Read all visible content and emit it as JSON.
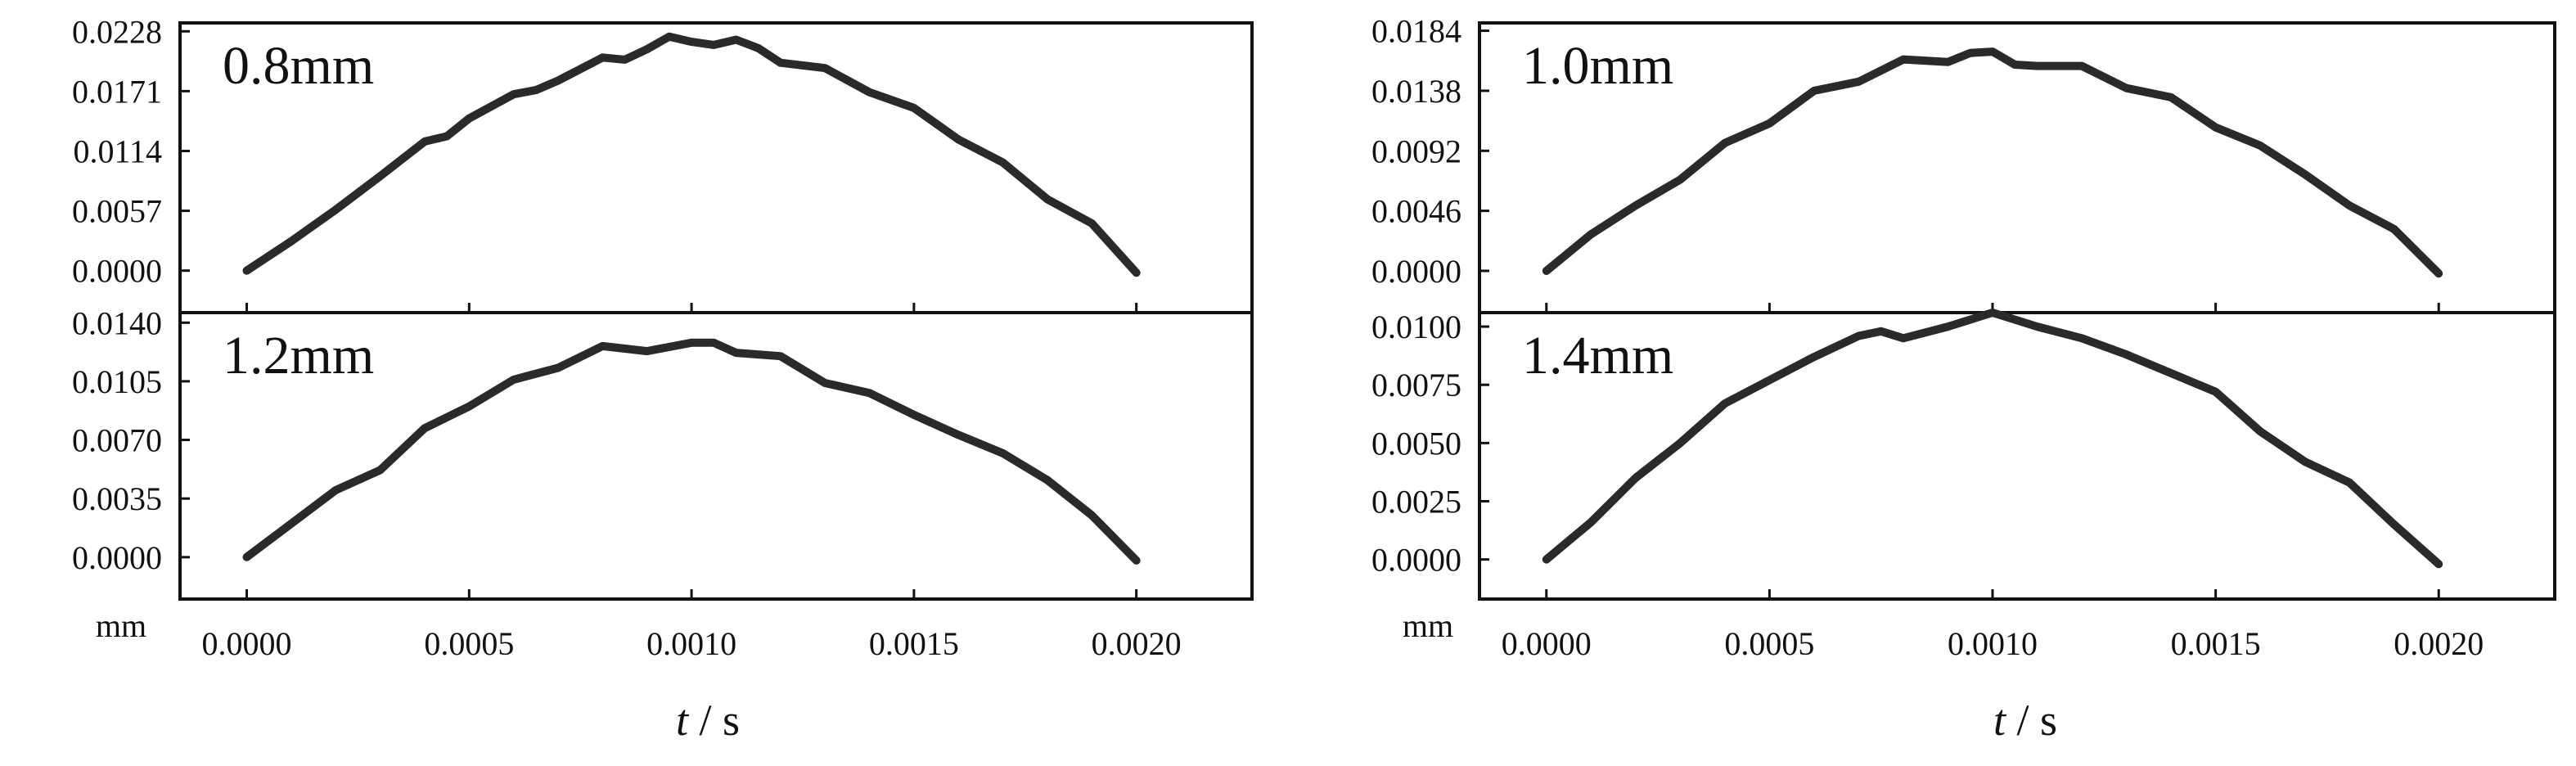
{
  "chart_data": [
    {
      "type": "line",
      "label": "0.8mm",
      "unit": "mm",
      "xlabel_italic": "t",
      "xlabel_rest": " / s",
      "xlim": [
        -0.00015,
        0.00226
      ],
      "ylim": [
        -0.004,
        0.0236
      ],
      "x_ticks": [
        "0.0000",
        "0.0005",
        "0.0010",
        "0.0015",
        "0.0020"
      ],
      "y_ticks": [
        "0.0000",
        "0.0057",
        "0.0114",
        "0.0171",
        "0.0228"
      ],
      "series": [
        {
          "x": [
            0,
            0.0001,
            0.0002,
            0.0003,
            0.0004,
            0.00045,
            0.0005,
            0.0006,
            0.00065,
            0.0007,
            0.0008,
            0.00085,
            0.0009,
            0.00095,
            0.001,
            0.00105,
            0.0011,
            0.00115,
            0.0012,
            0.0013,
            0.0014,
            0.0015,
            0.0016,
            0.0017,
            0.0018,
            0.0019,
            0.002
          ],
          "y": [
            0,
            0.0028,
            0.0058,
            0.009,
            0.0123,
            0.0128,
            0.0145,
            0.0168,
            0.0172,
            0.0181,
            0.0203,
            0.0201,
            0.0211,
            0.0223,
            0.0218,
            0.0215,
            0.022,
            0.0212,
            0.0198,
            0.0193,
            0.017,
            0.0155,
            0.0125,
            0.0103,
            0.0068,
            0.0045,
            -0.0002
          ]
        }
      ]
    },
    {
      "type": "line",
      "label": "1.0mm",
      "unit": "mm",
      "xlabel_italic": "t",
      "xlabel_rest": " / s",
      "xlim": [
        -0.00015,
        0.00226
      ],
      "ylim": [
        -0.0032,
        0.019
      ],
      "x_ticks": [
        "0.0000",
        "0.0005",
        "0.0010",
        "0.0015",
        "0.0020"
      ],
      "y_ticks": [
        "0.0000",
        "0.0046",
        "0.0092",
        "0.0138",
        "0.0184"
      ],
      "series": [
        {
          "x": [
            0,
            0.0001,
            0.0002,
            0.0003,
            0.0004,
            0.0005,
            0.0006,
            0.0007,
            0.0008,
            0.0009,
            0.00095,
            0.001,
            0.00105,
            0.0011,
            0.0012,
            0.0013,
            0.0014,
            0.0015,
            0.0016,
            0.0017,
            0.0018,
            0.0019,
            0.002
          ],
          "y": [
            0,
            0.0028,
            0.005,
            0.007,
            0.0098,
            0.0113,
            0.0138,
            0.0145,
            0.0162,
            0.016,
            0.0167,
            0.0168,
            0.0158,
            0.0157,
            0.0157,
            0.014,
            0.0133,
            0.011,
            0.0096,
            0.0074,
            0.005,
            0.0032,
            -0.0002
          ]
        }
      ]
    },
    {
      "type": "line",
      "label": "1.2mm",
      "unit": "mm",
      "xlabel_italic": "t",
      "xlabel_rest": " / s",
      "xlim": [
        -0.00015,
        0.00226
      ],
      "ylim": [
        -0.0025,
        0.0146
      ],
      "x_ticks": [
        "0.0000",
        "0.0005",
        "0.0010",
        "0.0015",
        "0.0020"
      ],
      "y_ticks": [
        "0.0000",
        "0.0035",
        "0.0070",
        "0.0105",
        "0.0140"
      ],
      "series": [
        {
          "x": [
            0,
            0.0001,
            0.0002,
            0.0003,
            0.0004,
            0.0005,
            0.0006,
            0.0007,
            0.0008,
            0.0009,
            0.001,
            0.00105,
            0.0011,
            0.0012,
            0.0013,
            0.0014,
            0.0015,
            0.0016,
            0.0017,
            0.0018,
            0.0019,
            0.002
          ],
          "y": [
            0,
            0.002,
            0.004,
            0.0052,
            0.0077,
            0.009,
            0.0106,
            0.0113,
            0.0126,
            0.0123,
            0.0128,
            0.0128,
            0.0122,
            0.012,
            0.0104,
            0.0098,
            0.0085,
            0.0073,
            0.0062,
            0.0046,
            0.0025,
            -0.0002
          ]
        }
      ]
    },
    {
      "type": "line",
      "label": "1.4mm",
      "unit": "mm",
      "xlabel_italic": "t",
      "xlabel_rest": " / s",
      "xlim": [
        -0.00015,
        0.00226
      ],
      "ylim": [
        -0.0017,
        0.0106
      ],
      "x_ticks": [
        "0.0000",
        "0.0005",
        "0.0010",
        "0.0015",
        "0.0020"
      ],
      "y_ticks": [
        "0.0000",
        "0.0025",
        "0.0050",
        "0.0075",
        "0.0100"
      ],
      "series": [
        {
          "x": [
            0,
            0.0001,
            0.0002,
            0.0003,
            0.0004,
            0.0005,
            0.0006,
            0.0007,
            0.00075,
            0.0008,
            0.0009,
            0.001,
            0.0011,
            0.0012,
            0.0013,
            0.0014,
            0.0015,
            0.0016,
            0.0017,
            0.0018,
            0.0019,
            0.002
          ],
          "y": [
            0,
            0.0016,
            0.0035,
            0.005,
            0.0067,
            0.0077,
            0.0087,
            0.0096,
            0.0098,
            0.0095,
            0.01,
            0.0106,
            0.01,
            0.0095,
            0.0088,
            0.008,
            0.0072,
            0.0055,
            0.0042,
            0.0033,
            0.0015,
            -0.0002
          ]
        }
      ]
    }
  ]
}
